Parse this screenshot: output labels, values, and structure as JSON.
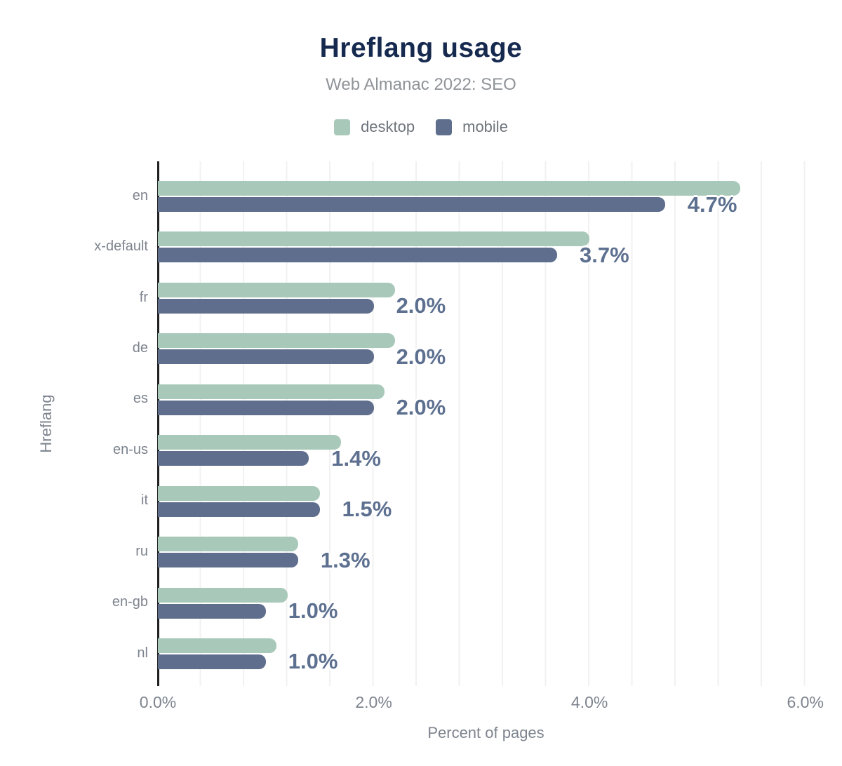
{
  "chart_data": {
    "type": "bar",
    "orientation": "horizontal",
    "title": "Hreflang usage",
    "subtitle": "Web Almanac 2022: SEO",
    "xlabel": "Percent of pages",
    "ylabel": "Hreflang",
    "categories": [
      "en",
      "x-default",
      "fr",
      "de",
      "es",
      "en-us",
      "it",
      "ru",
      "en-gb",
      "nl"
    ],
    "series": [
      {
        "name": "desktop",
        "color": "#a8c9ba",
        "values": [
          5.4,
          4.0,
          2.2,
          2.2,
          2.1,
          1.7,
          1.5,
          1.3,
          1.2,
          1.1
        ]
      },
      {
        "name": "mobile",
        "color": "#5e6e8c",
        "values": [
          4.7,
          3.7,
          2.0,
          2.0,
          2.0,
          1.4,
          1.5,
          1.3,
          1.0,
          1.0
        ]
      }
    ],
    "bar_labels": [
      "4.7%",
      "3.7%",
      "2.0%",
      "2.0%",
      "2.0%",
      "1.4%",
      "1.5%",
      "1.3%",
      "1.0%",
      "1.0%"
    ],
    "xlim": [
      0,
      6.08
    ],
    "xticks": [
      {
        "value": 0,
        "label": "0.0%"
      },
      {
        "value": 2,
        "label": "2.0%"
      },
      {
        "value": 4,
        "label": "4.0%"
      },
      {
        "value": 6,
        "label": "6.0%"
      }
    ],
    "grid": {
      "minor_interval": 0.4,
      "color": "#f1f1f1",
      "on": true
    },
    "legend_position": "top",
    "colors": {
      "title": "#16294f",
      "subtitle": "#8f9499",
      "axis_text": "#7d848e",
      "value_label": "#5d7090",
      "axis_line": "#1f2022"
    }
  }
}
